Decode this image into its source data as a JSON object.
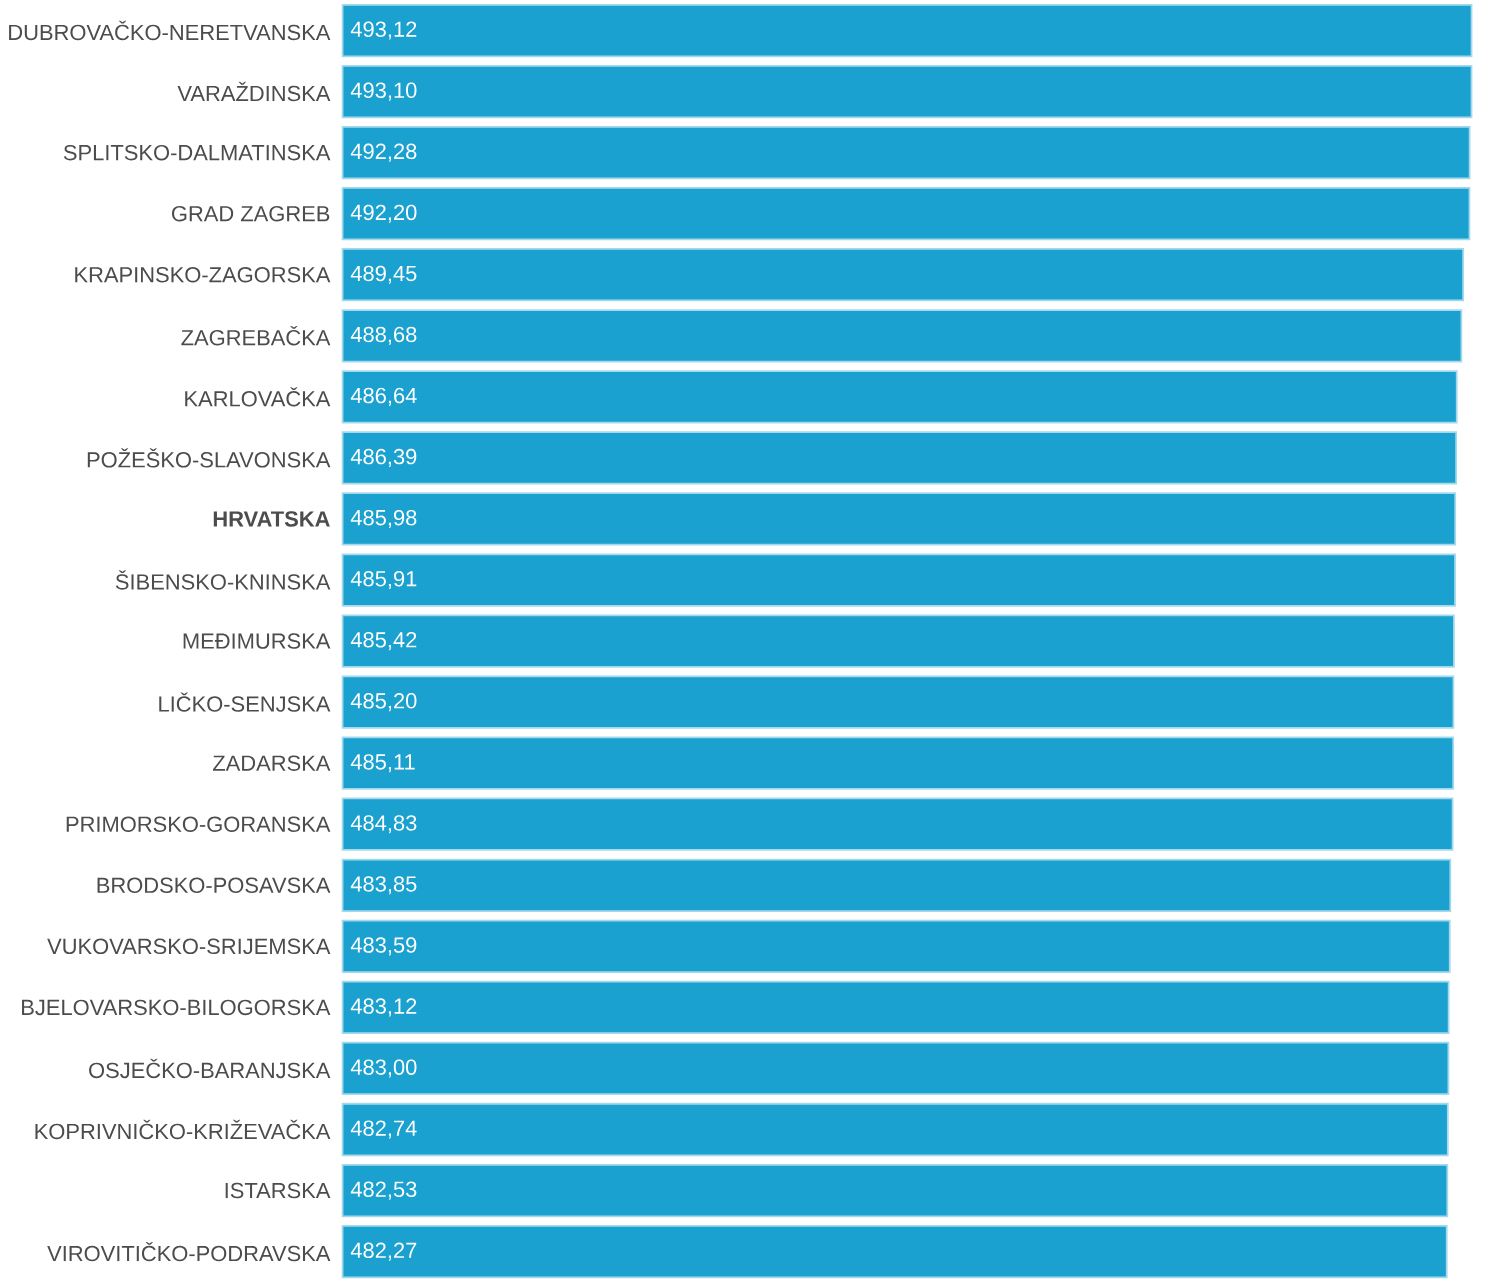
{
  "chart_data": {
    "type": "bar",
    "orientation": "horizontal",
    "color": "#1ba1cf",
    "data_labels": true,
    "categories": [
      "DUBROVAČKO-NERETVANSKA",
      "VARAŽDINSKA",
      "SPLITSKO-DALMATINSKA",
      "GRAD ZAGREB",
      "KRAPINSKO-ZAGORSKA",
      "ZAGREBAČKA",
      "KARLOVAČKA",
      "POŽEŠKO-SLAVONSKA",
      "**HRVATSKA**",
      "ŠIBENSKO-KNINSKA",
      "MEĐIMURSKA",
      "LIČKO-SENJSKA",
      "ZADARSKA",
      "PRIMORSKO-GORANSKA",
      "BRODSKO-POSAVSKA",
      "VUKOVARSKO-SRIJEMSKA",
      "BJELOVARSKO-BILOGORSKA",
      "OSJEČKO-BARANJSKA",
      "KOPRIVNIČKO-KRIŽEVAČKA",
      "ISTARSKA",
      "VIROVITIČKO-PODRAVSKA"
    ],
    "values": [
      493.12,
      493.1,
      492.28,
      492.2,
      489.45,
      488.68,
      486.64,
      486.39,
      485.98,
      485.91,
      485.42,
      485.2,
      485.11,
      484.83,
      483.85,
      483.59,
      483.12,
      483.0,
      482.74,
      482.53,
      482.27
    ],
    "value_labels": [
      "493,12",
      "493,10",
      "492,28",
      "492,20",
      "489,45",
      "488,68",
      "486,64",
      "486,39",
      "485,98",
      "485,91",
      "485,42",
      "485,20",
      "485,11",
      "484,83",
      "483,85",
      "483,59",
      "483,12",
      "483,00",
      "482,74",
      "482,53",
      "482,27"
    ]
  }
}
